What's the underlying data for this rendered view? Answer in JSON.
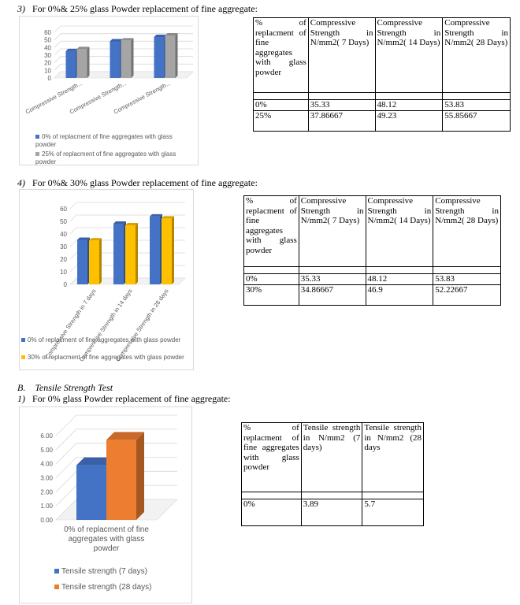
{
  "sections": {
    "s3_heading": {
      "num": "3)",
      "text": "For 0%& 25% glass Powder replacement of fine aggregate:"
    },
    "s4_heading": {
      "num": "4)",
      "text": "For 0%& 30% glass Powder replacement of fine aggregate:"
    },
    "sB_heading": {
      "num": "B.",
      "text": "Tensile Strength Test"
    },
    "sB1_heading": {
      "num": "1)",
      "text": "For 0% glass Powder replacement of fine aggregate:"
    }
  },
  "table1": {
    "headers": [
      "% of replacment of fine aggregates with glass powder",
      "Compressive Strength in N/mm2( 7 Days)",
      "Compressive Strength in N/mm2( 14 Days)",
      "Compressive Strength in N/mm2( 28 Days)"
    ],
    "rows": [
      [
        "0%",
        "35.33",
        "48.12",
        "53.83"
      ],
      [
        "25%",
        "37.86667",
        "49.23",
        "55.85667"
      ]
    ]
  },
  "table2": {
    "headers": [
      "% of replacment of fine aggregates with glass powder",
      "Compressive Strength in N/mm2( 7 Days)",
      "Compressive Strength in N/mm2( 14 Days)",
      "Compressive Strength in N/mm2( 28 Days)"
    ],
    "rows": [
      [
        "0%",
        "35.33",
        "48.12",
        "53.83"
      ],
      [
        "30%",
        "34.86667",
        "46.9",
        "52.22667"
      ]
    ]
  },
  "table3": {
    "headers": [
      "% of replacment of fine aggregates with glass powder",
      "Tensile strength in N/mm2 (7 days)",
      "Tensile strength in N/mm2 (28 days"
    ],
    "rows": [
      [
        "0%",
        "3.89",
        "5.7"
      ]
    ]
  },
  "chart_data": [
    {
      "type": "bar",
      "title": "",
      "categories": [
        "Compressive Strength...",
        "Compressive Strength...",
        "Compressive Strength..."
      ],
      "series": [
        {
          "name": "0% of replacment of fine aggregates with glass powder",
          "values": [
            35.33,
            48.12,
            53.83
          ],
          "color": "#4472c4"
        },
        {
          "name": "25% of replacment of fine aggregates with glass powder",
          "values": [
            37.86667,
            49.23,
            55.85667
          ],
          "color": "#a5a5a5"
        }
      ],
      "ylim": [
        0,
        60
      ],
      "yticks": [
        "0",
        "10",
        "20",
        "30",
        "40",
        "50",
        "60"
      ],
      "legend": "bottom",
      "grid": true
    },
    {
      "type": "bar",
      "title": "",
      "categories": [
        "Compressive Strength in 7 days",
        "Compressive Strength in 14 days",
        "Compressive Strength in 28 days"
      ],
      "series": [
        {
          "name": "0% of replacment of fine aggregates with glass powder",
          "values": [
            35.33,
            48.12,
            53.83
          ],
          "color": "#4472c4"
        },
        {
          "name": "30% of replacment of fine aggregates with glass powder",
          "values": [
            34.86667,
            46.9,
            52.22667
          ],
          "color": "#ffc000"
        }
      ],
      "ylim": [
        0,
        60
      ],
      "yticks": [
        "0",
        "10",
        "20",
        "30",
        "40",
        "50",
        "60"
      ],
      "legend": "bottom",
      "grid": true
    },
    {
      "type": "bar",
      "title": "",
      "categories": [
        "0% of replacment of fine aggregates with glass powder"
      ],
      "series": [
        {
          "name": "Tensile strength (7 days)",
          "values": [
            3.89
          ],
          "color": "#4472c4"
        },
        {
          "name": "Tensile strength (28 days)",
          "values": [
            5.7
          ],
          "color": "#ed7d31"
        }
      ],
      "ylim": [
        0,
        6
      ],
      "yticks": [
        "0.00",
        "1.00",
        "2.00",
        "3.00",
        "4.00",
        "5.00",
        "6.00"
      ],
      "legend": "bottom",
      "grid": true
    }
  ]
}
